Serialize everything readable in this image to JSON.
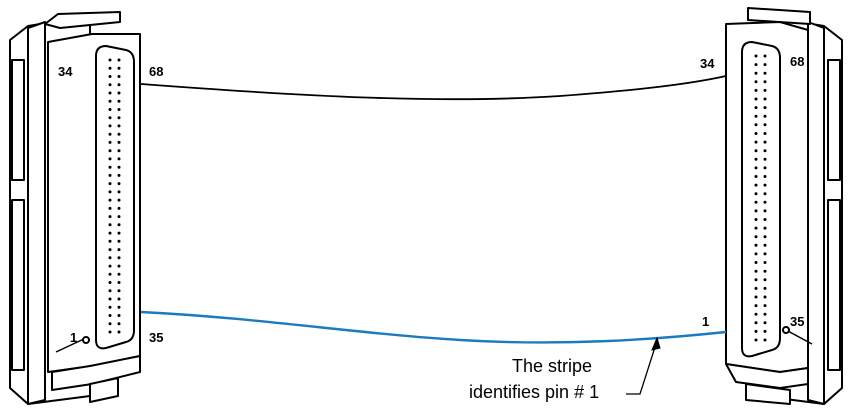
{
  "left_connector": {
    "top_inner_pin": "34",
    "top_outer_pin": "68",
    "bottom_inner_pin": "1",
    "bottom_outer_pin": "35"
  },
  "right_connector": {
    "top_inner_pin": "34",
    "top_outer_pin": "68",
    "bottom_inner_pin": "1",
    "bottom_outer_pin": "35"
  },
  "cable": {
    "edge_color": "#000000",
    "stripe_color": "#1a7bc0"
  },
  "callout": {
    "line1": "The stripe",
    "line2": "identifies pin # 1"
  },
  "colors": {
    "outline": "#000000",
    "background": "#ffffff",
    "stripe": "#1a7bc0"
  }
}
